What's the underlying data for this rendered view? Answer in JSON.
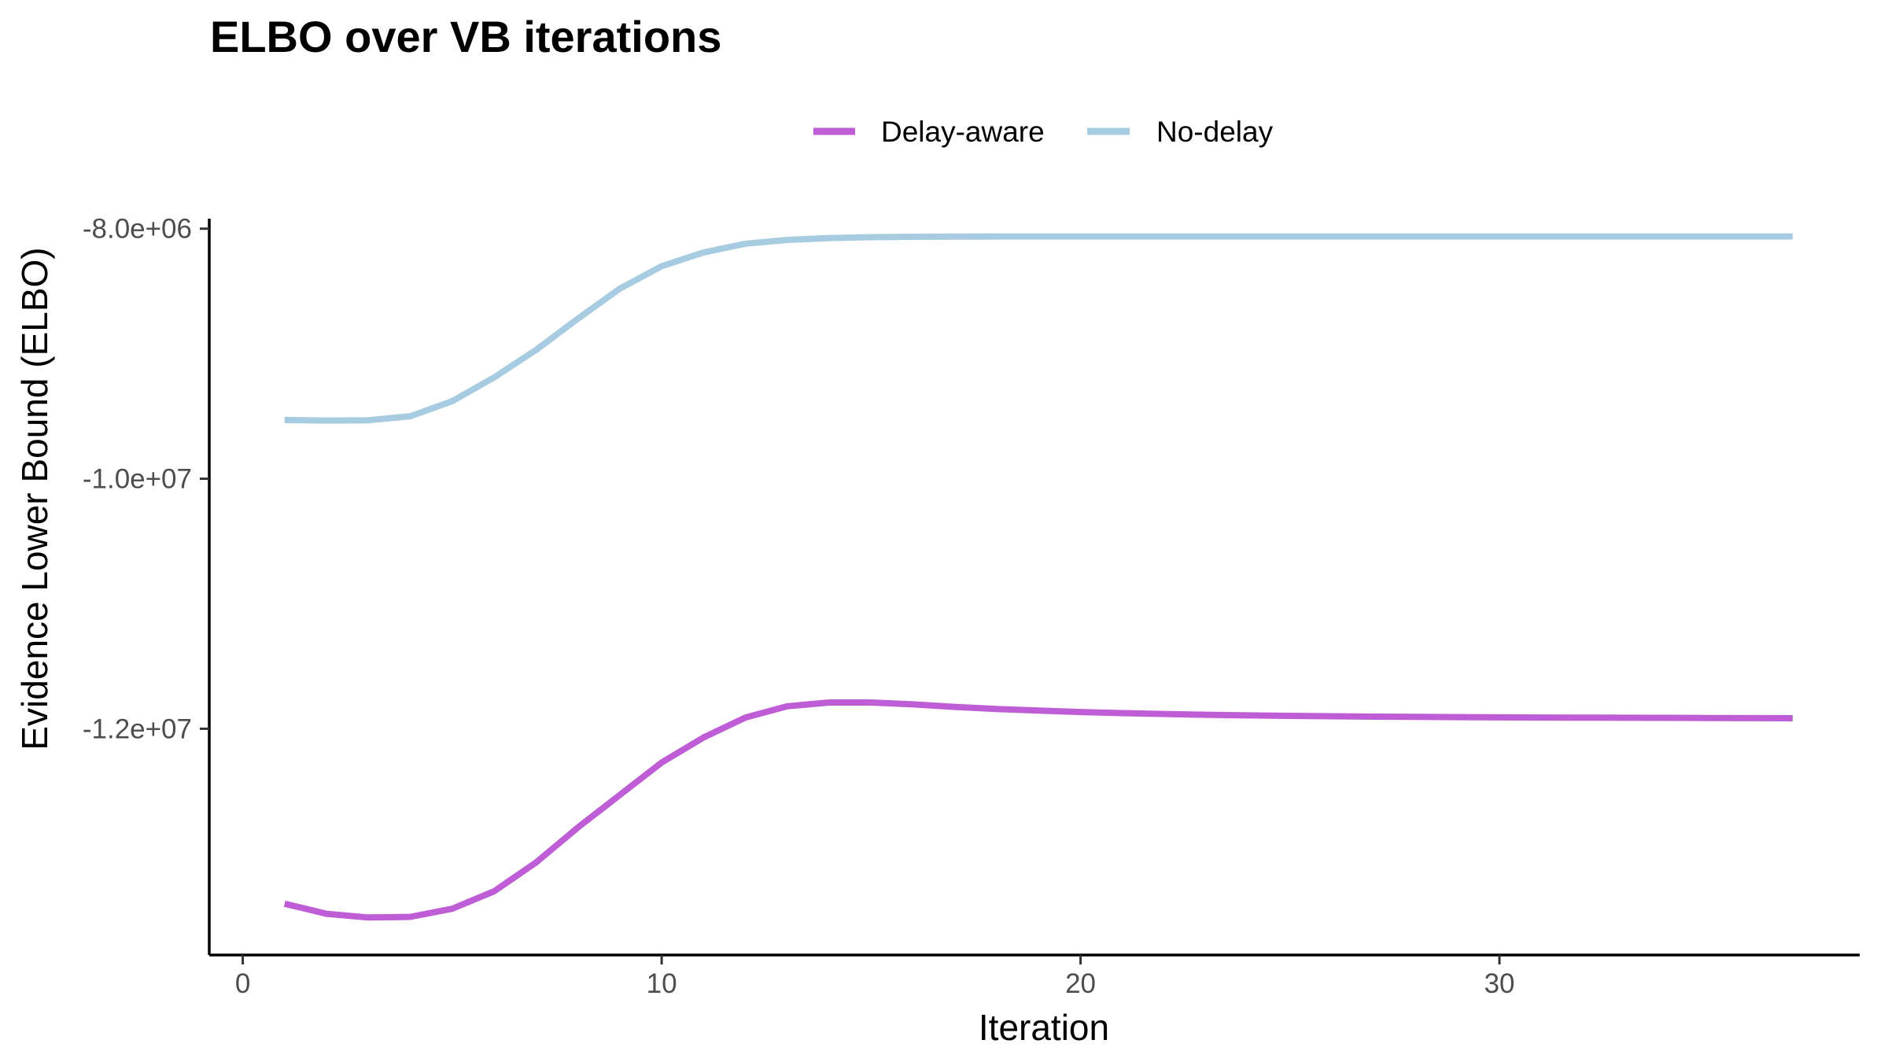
{
  "chart_data": {
    "type": "line",
    "title": "ELBO over VB iterations",
    "xlabel": "Iteration",
    "ylabel": "Evidence Lower Bound (ELBO)",
    "xlim": [
      -0.8,
      38.6
    ],
    "ylim": [
      -13810000,
      -7920000
    ],
    "x_ticks": [
      0,
      10,
      20,
      30
    ],
    "x_tick_labels": [
      "0",
      "10",
      "20",
      "30"
    ],
    "y_ticks": [
      -8000000,
      -10000000,
      -12000000
    ],
    "y_tick_labels": [
      "-8.0e+06",
      "-1.0e+07",
      "-1.2e+07"
    ],
    "grid": false,
    "legend_position": "top",
    "x": [
      1,
      2,
      3,
      4,
      5,
      6,
      7,
      8,
      9,
      10,
      11,
      12,
      13,
      14,
      15,
      16,
      17,
      18,
      19,
      20,
      21,
      22,
      23,
      24,
      25,
      26,
      27,
      28,
      29,
      30,
      31,
      32,
      33,
      34,
      35,
      36,
      37
    ],
    "series": [
      {
        "name": "Delay-aware",
        "color": "#bf5dd6",
        "values": [
          -13400000,
          -13480000,
          -13510000,
          -13505000,
          -13440000,
          -13300000,
          -13070000,
          -12790000,
          -12530000,
          -12270000,
          -12070000,
          -11910000,
          -11820000,
          -11790000,
          -11790000,
          -11805000,
          -11825000,
          -11842000,
          -11855000,
          -11866000,
          -11875000,
          -11882000,
          -11888000,
          -11893000,
          -11897000,
          -11900000,
          -11903000,
          -11905000,
          -11907000,
          -11909000,
          -11910000,
          -11911000,
          -11912000,
          -11913000,
          -11914000,
          -11915000,
          -11916000
        ]
      },
      {
        "name": "No-delay",
        "color": "#a7cce1",
        "values": [
          -9530000,
          -9535000,
          -9532000,
          -9500000,
          -9380000,
          -9190000,
          -8970000,
          -8720000,
          -8480000,
          -8300000,
          -8190000,
          -8120000,
          -8090000,
          -8075000,
          -8068000,
          -8065000,
          -8063000,
          -8062000,
          -8062000,
          -8062000,
          -8062000,
          -8062000,
          -8062000,
          -8062000,
          -8062000,
          -8062000,
          -8062000,
          -8062000,
          -8062000,
          -8062000,
          -8062000,
          -8062000,
          -8062000,
          -8062000,
          -8062000,
          -8062000,
          -8062000
        ]
      }
    ]
  }
}
